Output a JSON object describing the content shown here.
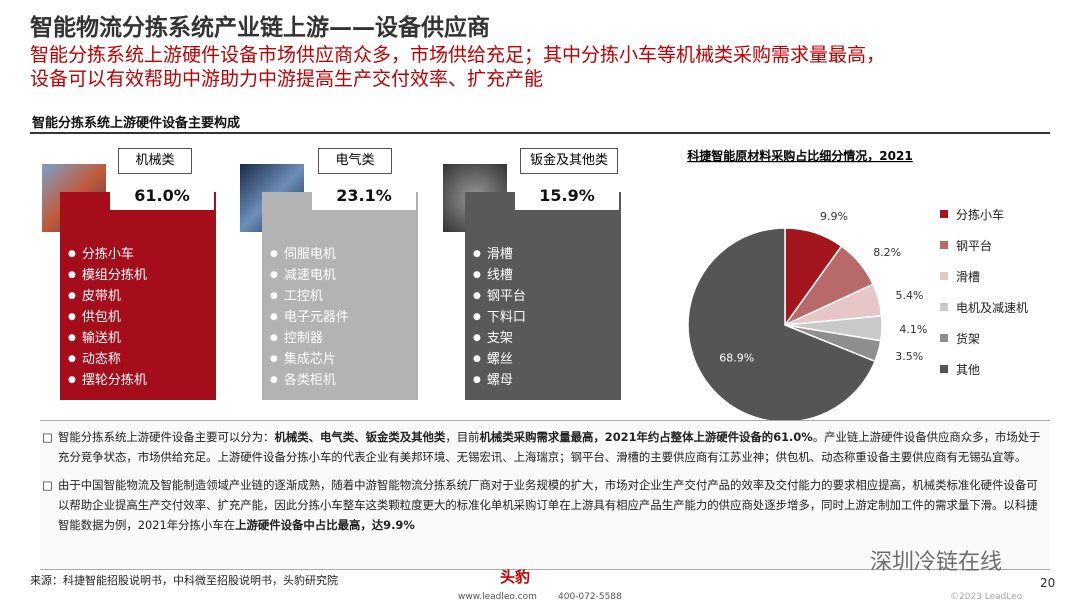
{
  "header": {
    "title": "智能物流分拣系统产业链上游——设备供应商",
    "subtitle": [
      "智能分拣系统上游硬件设备市场供应商众多，市场供给充足；其中分拣小车等机械类采购需求量最高，",
      "设备可以有效帮助中游助力中游提高生产交付效率、扩充产能"
    ]
  },
  "section": "智能分拣系统上游硬件设备主要构成",
  "panels": [
    {
      "label": "机械类",
      "share": "61.0%",
      "items": [
        "分拣小车",
        "模组分拣机",
        "皮带机",
        "供包机",
        "输送机",
        "动态称",
        "摆轮分拣机"
      ]
    },
    {
      "label": "电气类",
      "share": "23.1%",
      "items": [
        "伺服电机",
        "减速电机",
        "工控机",
        "电子元器件",
        "控制器",
        "集成芯片",
        "各类柜机"
      ]
    },
    {
      "label": "钣金及其他类",
      "share": "15.9%",
      "items": [
        "滑槽",
        "线槽",
        "钢平台",
        "下料口",
        "支架",
        "螺丝",
        "螺母"
      ]
    }
  ],
  "chart_data": {
    "type": "pie",
    "title": "科捷智能原材料采购占比细分情况，2021",
    "categories": [
      "分拣小车",
      "钢平台",
      "滑槽",
      "电机及减速机",
      "货架",
      "其他"
    ],
    "values": [
      9.9,
      8.2,
      5.4,
      4.1,
      3.5,
      68.9
    ],
    "value_labels": [
      "9.9%",
      "8.2%",
      "5.4%",
      "4.1%",
      "3.5%",
      "68.9%"
    ],
    "colors": [
      "#a3161d",
      "#b86a6a",
      "#e6c6c6",
      "#c9c9c9",
      "#8e8e8e",
      "#555555"
    ],
    "legend": "right"
  },
  "notes": [
    [
      {
        "text": "智能分拣系统上游硬件设备主要可以分为：",
        "bold": false
      },
      {
        "text": "机械类、电气类、钣金类及其他类",
        "bold": true
      },
      {
        "text": "，目前",
        "bold": false
      },
      {
        "text": "机械类采购需求量最高，2021年约占整体上游硬件设备的61.0%",
        "bold": true
      },
      {
        "text": "。产业链上游硬件设备供应商众多，市场处于充分竞争状态，市场供给充足。上游硬件设备分拣小车的代表企业有美邦环境、无锡宏讯、上海瑞京；钢平台、滑槽的主要供应商有江苏业神；供包机、动态称重设备主要供应商有无锡弘宜等。",
        "bold": false
      }
    ],
    [
      {
        "text": "由于中国智能物流及智能制造领域产业链的逐渐成熟，随着中游智能物流分拣系统厂商对于业务规模的扩大，市场对企业生产交付产品的效率及交付能力的要求相应提高，机械类标准化硬件设备可以帮助企业提高生产交付效率、扩充产能，因此分拣小车整车这类颗粒度更大的标准化单机采购订单在上游具有相应产品生产能力的供应商处逐步增多，同时上游定制加工件的需求量下滑。以科捷智能数据为例，2021年分拣小车在",
        "bold": false
      },
      {
        "text": "上游硬件设备中占比最高，达9.9%",
        "bold": true
      }
    ]
  ],
  "footer": {
    "source": "来源：科捷智能招股说明书，中科微至招股说明书，头豹研究院",
    "logo": "头豹",
    "website": "www.leadleo.com",
    "phone": "400-072-5588",
    "copyright": "©2023 LeadLeo",
    "page": "20",
    "watermark": "深圳冷链在线"
  }
}
